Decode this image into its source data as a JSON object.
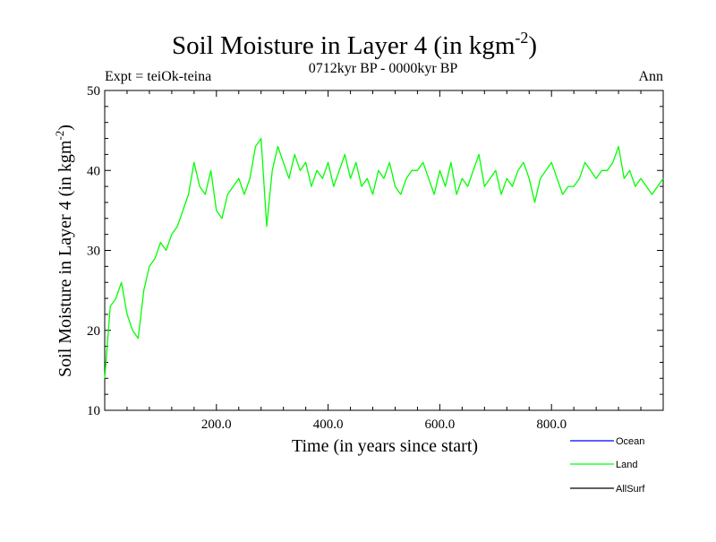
{
  "chart_data": {
    "type": "line",
    "title": "Soil Moisture in Layer 4 (in kgm",
    "title_sup": "-2",
    "title_close": ")",
    "subtitle": "0712kyr BP - 0000kyr BP",
    "left_label": "Expt = teiOk-teina",
    "right_label": "Ann",
    "xlabel": "Time (in years since start)",
    "ylabel": "Soil Moisture in Layer 4 (in kgm",
    "ylabel_sup": "-2",
    "ylabel_close": ")",
    "xlim": [
      0,
      1000
    ],
    "ylim": [
      10,
      50
    ],
    "x_ticks": [
      200,
      400,
      600,
      800
    ],
    "x_tick_labels": [
      "200.0",
      "400.0",
      "600.0",
      "800.0"
    ],
    "y_ticks": [
      10,
      20,
      30,
      40,
      50
    ],
    "y_tick_labels": [
      "10",
      "20",
      "30",
      "40",
      "50"
    ],
    "legend": [
      {
        "name": "Ocean",
        "color": "#0000ff"
      },
      {
        "name": "Land",
        "color": "#00ff00"
      },
      {
        "name": "AllSurf",
        "color": "#000000"
      }
    ],
    "series": [
      {
        "name": "Land",
        "color": "#00ff00",
        "x_step": 10,
        "values": [
          14,
          23,
          24,
          26,
          22,
          20,
          19,
          25,
          28,
          29,
          31,
          30,
          32,
          33,
          35,
          37,
          41,
          38,
          37,
          40,
          35,
          34,
          37,
          38,
          39,
          37,
          39,
          43,
          44,
          33,
          40,
          43,
          41,
          39,
          42,
          40,
          41,
          38,
          40,
          39,
          41,
          38,
          40,
          42,
          39,
          41,
          38,
          39,
          37,
          40,
          39,
          41,
          38,
          37,
          39,
          40,
          40,
          41,
          39,
          37,
          40,
          38,
          41,
          37,
          39,
          38,
          40,
          42,
          38,
          39,
          40,
          37,
          39,
          38,
          40,
          41,
          39,
          36,
          39,
          40,
          41,
          39,
          37,
          38,
          38,
          39,
          41,
          40,
          39,
          40,
          40,
          41,
          43,
          39,
          40,
          38,
          39,
          38,
          37,
          38,
          39
        ]
      }
    ]
  }
}
